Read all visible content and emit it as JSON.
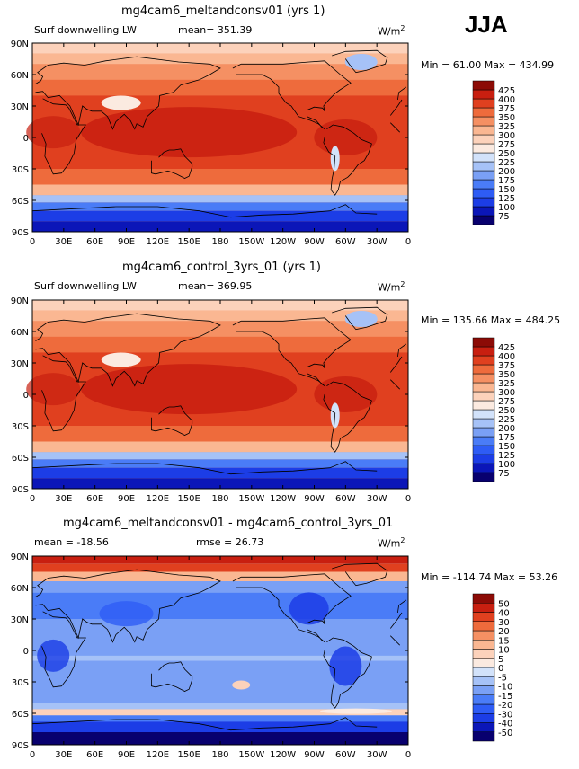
{
  "season": "JJA",
  "x_ticks": [
    "0",
    "30E",
    "60E",
    "90E",
    "120E",
    "150E",
    "180",
    "150W",
    "120W",
    "90W",
    "60W",
    "30W",
    "0"
  ],
  "y_ticks": [
    "90N",
    "60N",
    "30N",
    "0",
    "30S",
    "60S",
    "90S"
  ],
  "panels": [
    {
      "title": "mg4cam6_meltandconsv01 (yrs 1)",
      "left_label": "Surf downwelling LW",
      "center_label": "mean= 351.39",
      "right_label": "",
      "units": "W/m",
      "units_sup": "2",
      "minmax": "Min =  61.00 Max = 434.99",
      "palette": "abs"
    },
    {
      "title": "mg4cam6_control_3yrs_01 (yrs 1)",
      "left_label": "Surf downwelling LW",
      "center_label": "mean= 369.95",
      "right_label": "",
      "units": "W/m",
      "units_sup": "2",
      "minmax": "Min = 135.66 Max = 484.25",
      "palette": "abs"
    },
    {
      "title": "mg4cam6_meltandconsv01 - mg4cam6_control_3yrs_01",
      "left_label": "mean = -18.56",
      "center_label": "rmse =  26.73",
      "right_label": "",
      "units": "W/m",
      "units_sup": "2",
      "minmax": "Min = -114.74 Max =  53.26",
      "palette": "diff"
    }
  ],
  "chart_data": [
    {
      "type": "heatmap",
      "title": "mg4cam6_meltandconsv01 (yrs 1)",
      "variable": "Surf downwelling LW",
      "units": "W/m2",
      "mean": 351.39,
      "min": 61.0,
      "max": 434.99,
      "x_ticks": [
        "0",
        "30E",
        "60E",
        "90E",
        "120E",
        "150E",
        "180",
        "150W",
        "120W",
        "90W",
        "60W",
        "30W",
        "0"
      ],
      "y_ticks": [
        "90N",
        "60N",
        "30N",
        "0",
        "30S",
        "60S",
        "90S"
      ],
      "colorbar_levels": [
        75,
        100,
        125,
        150,
        175,
        200,
        225,
        250,
        275,
        300,
        325,
        350,
        375,
        400,
        425
      ],
      "colorbar_colors": [
        "#08006e",
        "#0b16b8",
        "#1c3de6",
        "#2e5cf5",
        "#4a7cf7",
        "#7aa0f5",
        "#a6c2f7",
        "#d2e2fa",
        "#fbeae0",
        "#fcd2bb",
        "#fab792",
        "#f59063",
        "#ee6b3c",
        "#e0401f",
        "#c81f10",
        "#8c0b06"
      ]
    },
    {
      "type": "heatmap",
      "title": "mg4cam6_control_3yrs_01 (yrs 1)",
      "variable": "Surf downwelling LW",
      "units": "W/m2",
      "mean": 369.95,
      "min": 135.66,
      "max": 484.25,
      "x_ticks": [
        "0",
        "30E",
        "60E",
        "90E",
        "120E",
        "150E",
        "180",
        "150W",
        "120W",
        "90W",
        "60W",
        "30W",
        "0"
      ],
      "y_ticks": [
        "90N",
        "60N",
        "30N",
        "0",
        "30S",
        "60S",
        "90S"
      ],
      "colorbar_levels": [
        75,
        100,
        125,
        150,
        175,
        200,
        225,
        250,
        275,
        300,
        325,
        350,
        375,
        400,
        425
      ],
      "colorbar_colors": [
        "#08006e",
        "#0b16b8",
        "#1c3de6",
        "#2e5cf5",
        "#4a7cf7",
        "#7aa0f5",
        "#a6c2f7",
        "#d2e2fa",
        "#fbeae0",
        "#fcd2bb",
        "#fab792",
        "#f59063",
        "#ee6b3c",
        "#e0401f",
        "#c81f10",
        "#8c0b06"
      ]
    },
    {
      "type": "heatmap",
      "title": "mg4cam6_meltandconsv01 - mg4cam6_control_3yrs_01",
      "units": "W/m2",
      "mean": -18.56,
      "rmse": 26.73,
      "min": -114.74,
      "max": 53.26,
      "x_ticks": [
        "0",
        "30E",
        "60E",
        "90E",
        "120E",
        "150E",
        "180",
        "150W",
        "120W",
        "90W",
        "60W",
        "30W",
        "0"
      ],
      "y_ticks": [
        "90N",
        "60N",
        "30N",
        "0",
        "30S",
        "60S",
        "90S"
      ],
      "colorbar_levels": [
        -50,
        -40,
        -30,
        -20,
        -15,
        -10,
        -5,
        0,
        5,
        10,
        15,
        20,
        30,
        40,
        50
      ],
      "colorbar_colors": [
        "#08006e",
        "#0b16b8",
        "#1c3de6",
        "#2e5cf5",
        "#4a7cf7",
        "#7aa0f5",
        "#a6c2f7",
        "#d2e2fa",
        "#fbeae0",
        "#fcd2bb",
        "#fab792",
        "#f59063",
        "#ee6b3c",
        "#e0401f",
        "#c81f10",
        "#8c0b06"
      ]
    }
  ]
}
